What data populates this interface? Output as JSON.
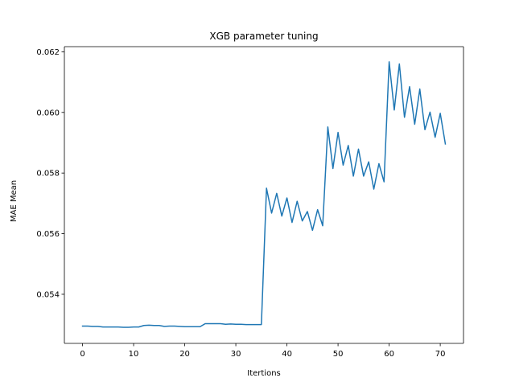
{
  "chart_data": {
    "type": "line",
    "title": "XGB parameter tuning",
    "xlabel": "Itertions",
    "ylabel": "MAE Mean",
    "xlim": [
      -3.55,
      74.55
    ],
    "ylim": [
      0.05238,
      0.06217
    ],
    "xticks": [
      0,
      10,
      20,
      30,
      40,
      50,
      60,
      70
    ],
    "xtick_labels": [
      "0",
      "10",
      "20",
      "30",
      "40",
      "50",
      "60",
      "70"
    ],
    "yticks": [
      0.054,
      0.056,
      0.058,
      0.06,
      0.062
    ],
    "ytick_labels": [
      "0.054",
      "0.056",
      "0.058",
      "0.060",
      "0.062"
    ],
    "grid": false,
    "legend": "none",
    "series": [
      {
        "color": "#1f77b4",
        "x": [
          0,
          1,
          2,
          3,
          4,
          5,
          6,
          7,
          8,
          9,
          10,
          11,
          12,
          13,
          14,
          15,
          16,
          17,
          18,
          19,
          20,
          21,
          22,
          23,
          24,
          25,
          26,
          27,
          28,
          29,
          30,
          31,
          32,
          33,
          34,
          35,
          36,
          37,
          38,
          39,
          40,
          41,
          42,
          43,
          44,
          45,
          46,
          47,
          48,
          49,
          50,
          51,
          52,
          53,
          54,
          55,
          56,
          57,
          58,
          59,
          60,
          61,
          62,
          63,
          64,
          65,
          66,
          67,
          68,
          69,
          70,
          71
        ],
        "y": [
          0.05295,
          0.05295,
          0.05294,
          0.05294,
          0.05292,
          0.05292,
          0.05292,
          0.05292,
          0.05291,
          0.05291,
          0.05292,
          0.05292,
          0.05297,
          0.05298,
          0.05297,
          0.05297,
          0.05294,
          0.05295,
          0.05295,
          0.05294,
          0.05293,
          0.05293,
          0.05293,
          0.05293,
          0.05303,
          0.05303,
          0.05303,
          0.05303,
          0.05301,
          0.05302,
          0.05301,
          0.05301,
          0.053,
          0.053,
          0.053,
          0.053,
          0.0575,
          0.05668,
          0.05733,
          0.05658,
          0.05718,
          0.05637,
          0.05707,
          0.05642,
          0.05673,
          0.05611,
          0.05679,
          0.05626,
          0.05952,
          0.05815,
          0.05934,
          0.05826,
          0.05891,
          0.0579,
          0.05879,
          0.0579,
          0.05837,
          0.05747,
          0.05831,
          0.05771,
          0.06167,
          0.06008,
          0.0616,
          0.05984,
          0.06085,
          0.05961,
          0.06077,
          0.05943,
          0.06001,
          0.05918,
          0.05997,
          0.05896
        ]
      }
    ]
  }
}
